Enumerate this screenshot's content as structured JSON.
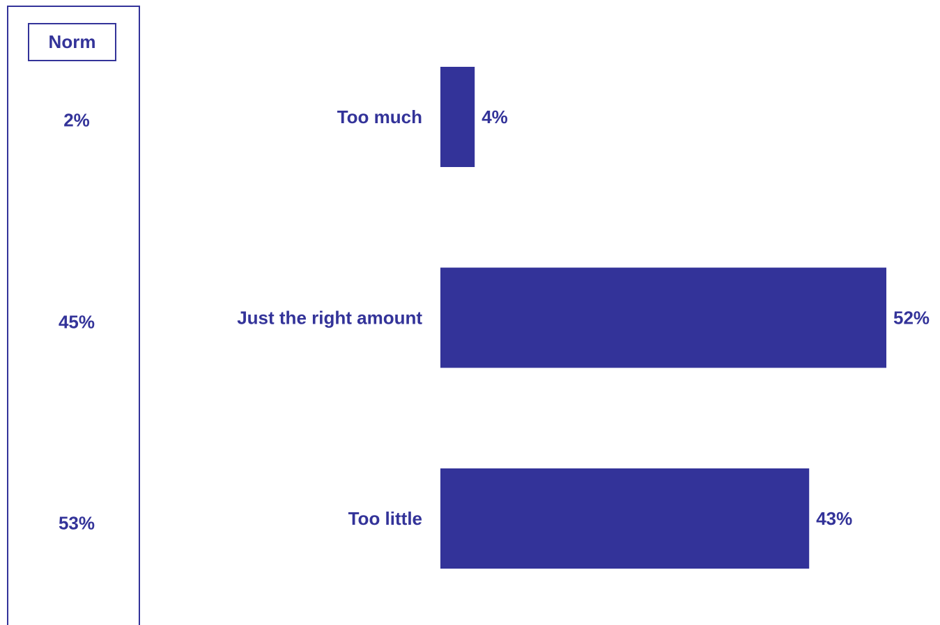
{
  "norm": {
    "header": "Norm",
    "values": [
      "2%",
      "45%",
      "53%"
    ]
  },
  "colors": {
    "bar": "#333399",
    "text": "#333399"
  },
  "chart_data": {
    "type": "bar",
    "orientation": "horizontal",
    "categories": [
      "Too much",
      "Just the right amount",
      "Too little"
    ],
    "values": [
      4,
      52,
      43
    ],
    "value_labels": [
      "4%",
      "52%",
      "43%"
    ],
    "xlim": [
      0,
      52
    ],
    "grid": false
  }
}
